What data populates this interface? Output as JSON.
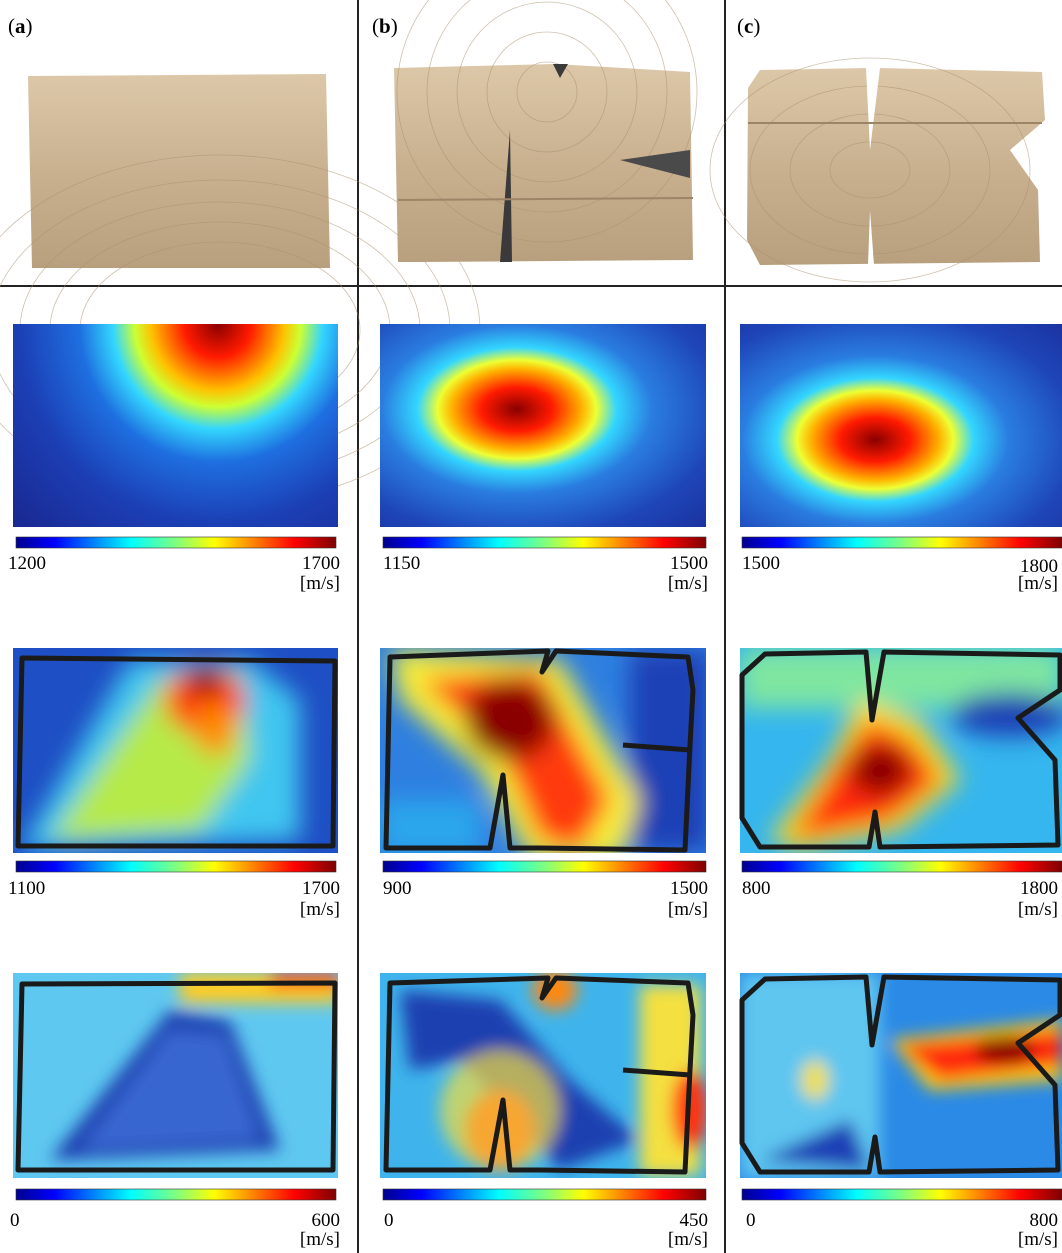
{
  "panels": [
    {
      "label": "a",
      "rows": [
        {
          "min": "1200",
          "max": "1700",
          "unit": "[m/s]"
        },
        {
          "min": "1100",
          "max": "1700",
          "unit": "[m/s]"
        },
        {
          "min": "0",
          "max": "600",
          "unit": "[m/s]"
        }
      ]
    },
    {
      "label": "b",
      "rows": [
        {
          "min": "1150",
          "max": "1500",
          "unit": "[m/s]"
        },
        {
          "min": "900",
          "max": "1500",
          "unit": "[m/s]"
        },
        {
          "min": "0",
          "max": "450",
          "unit": "[m/s]"
        }
      ]
    },
    {
      "label": "c",
      "rows": [
        {
          "min": "1500",
          "max": "1800",
          "unit": "[m/s]"
        },
        {
          "min": "800",
          "max": "1800",
          "unit": "[m/s]"
        },
        {
          "min": "0",
          "max": "800",
          "unit": "[m/s]"
        }
      ]
    }
  ],
  "colormap": "jet",
  "colors": {
    "wood_light": "#d8c2a4",
    "wood_dark": "#b9a080",
    "outline": "#1a1a1a",
    "divider": "#222222"
  }
}
